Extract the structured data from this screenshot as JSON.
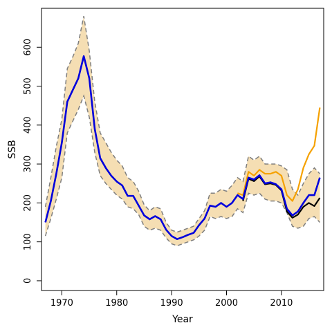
{
  "chart_data": {
    "type": "line",
    "title": "",
    "xlabel": "Year",
    "ylabel": "SSB",
    "xlim": [
      1966.3,
      2017.7
    ],
    "ylim": [
      -25,
      700
    ],
    "x_ticks": [
      1970,
      1980,
      1990,
      2000,
      2010
    ],
    "y_ticks": [
      0,
      100,
      200,
      300,
      400,
      500,
      600
    ],
    "grid": false,
    "legend": "none",
    "colors": {
      "band": "#f5deb3",
      "band_bounds": "#7f7f7f",
      "main_series": "#0000dd",
      "series_orange": "#f5a100",
      "series_black": "#000000"
    },
    "band": {
      "x": [
        1967,
        1968,
        1969,
        1970,
        1971,
        1972,
        1973,
        1974,
        1975,
        1976,
        1977,
        1978,
        1979,
        1980,
        1981,
        1982,
        1983,
        1984,
        1985,
        1986,
        1987,
        1988,
        1989,
        1990,
        1991,
        1992,
        1993,
        1994,
        1995,
        1996,
        1997,
        1998,
        1999,
        2000,
        2001,
        2002,
        2003,
        2004,
        2005,
        2006,
        2007,
        2008,
        2009,
        2010,
        2011,
        2012,
        2013,
        2014,
        2015,
        2016,
        2017
      ],
      "upper": [
        190,
        265,
        345,
        415,
        545,
        575,
        610,
        680,
        590,
        460,
        380,
        355,
        330,
        310,
        295,
        265,
        255,
        230,
        195,
        180,
        190,
        185,
        150,
        130,
        125,
        130,
        135,
        140,
        160,
        180,
        225,
        225,
        235,
        230,
        245,
        265,
        255,
        320,
        310,
        320,
        300,
        300,
        300,
        295,
        285,
        235,
        220,
        250,
        275,
        290,
        275
      ],
      "lower": [
        115,
        160,
        210,
        265,
        380,
        410,
        440,
        475,
        420,
        330,
        270,
        250,
        235,
        220,
        210,
        190,
        185,
        170,
        140,
        130,
        135,
        130,
        110,
        95,
        90,
        95,
        100,
        105,
        115,
        130,
        165,
        160,
        165,
        160,
        165,
        185,
        175,
        225,
        220,
        225,
        210,
        205,
        205,
        200,
        175,
        140,
        135,
        140,
        160,
        165,
        150
      ]
    },
    "series": [
      {
        "x": [
          1967,
          1968,
          1969,
          1970,
          1971,
          1972,
          1973,
          1974,
          1975,
          1976,
          1977,
          1978,
          1979,
          1980,
          1981,
          1982,
          1983,
          1984,
          1985,
          1986,
          1987,
          1988,
          1989,
          1990,
          1991,
          1992,
          1993,
          1994,
          1995,
          1996,
          1997,
          1998,
          1999,
          2000,
          2001,
          2002,
          2003,
          2004,
          2005,
          2006,
          2007,
          2008,
          2009,
          2010,
          2011,
          2012,
          2013,
          2014,
          2015,
          2016,
          2017
        ],
        "values": [
          150,
          205,
          275,
          355,
          460,
          490,
          520,
          577,
          520,
          390,
          315,
          290,
          270,
          255,
          245,
          218,
          218,
          193,
          168,
          158,
          166,
          158,
          131,
          115,
          107,
          112,
          118,
          123,
          143,
          160,
          193,
          190,
          200,
          190,
          200,
          220,
          210,
          265,
          260,
          271,
          250,
          253,
          248,
          235,
          185,
          168,
          178,
          200,
          220,
          220,
          265
        ]
      },
      {
        "x": [
          2002,
          2003,
          2004,
          2005,
          2006,
          2007,
          2008,
          2009,
          2010,
          2011,
          2012,
          2013,
          2014,
          2015,
          2016,
          2017
        ],
        "values": [
          225,
          220,
          280,
          270,
          285,
          275,
          275,
          280,
          270,
          220,
          205,
          235,
          290,
          325,
          347,
          445
        ]
      },
      {
        "x": [
          2003,
          2004,
          2005,
          2006,
          2007,
          2008,
          2009,
          2010,
          2011,
          2012,
          2013,
          2014,
          2015,
          2016,
          2017
        ],
        "values": [
          205,
          262,
          256,
          268,
          248,
          250,
          246,
          232,
          178,
          162,
          170,
          190,
          200,
          192,
          213
        ]
      }
    ]
  }
}
